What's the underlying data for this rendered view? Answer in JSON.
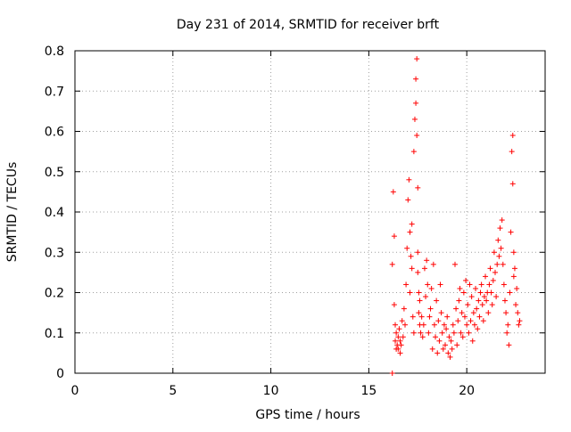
{
  "chart_data": {
    "type": "scatter",
    "title": "Day 231 of 2014, SRMTID for receiver brft",
    "xlabel": "GPS time / hours",
    "ylabel": "SRMTID / TECUs",
    "xlim": [
      0,
      24
    ],
    "ylim": [
      0,
      0.8
    ],
    "xticks": [
      0,
      5,
      10,
      15,
      20
    ],
    "xtick_labels": [
      "0",
      "5",
      "10",
      "15",
      "20"
    ],
    "yticks": [
      0,
      0.1,
      0.2,
      0.3,
      0.4,
      0.5,
      0.6,
      0.7,
      0.8
    ],
    "ytick_labels": [
      "0",
      "0.1",
      "0.2",
      "0.3",
      "0.4",
      "0.5",
      "0.6",
      "0.7",
      "0.8"
    ],
    "grid": true,
    "marker": "+",
    "series": [
      {
        "name": "SRMTID",
        "color": "#ff0000",
        "x": [
          16.2,
          16.2,
          16.25,
          16.3,
          16.3,
          16.35,
          16.35,
          16.4,
          16.4,
          16.45,
          16.5,
          16.5,
          16.55,
          16.6,
          16.6,
          16.65,
          16.7,
          16.75,
          16.8,
          16.85,
          16.9,
          16.95,
          17.0,
          17.05,
          17.1,
          17.1,
          17.15,
          17.2,
          17.2,
          17.25,
          17.3,
          17.3,
          17.35,
          17.4,
          17.4,
          17.45,
          17.45,
          17.5,
          17.5,
          17.5,
          17.55,
          17.55,
          17.6,
          17.6,
          17.65,
          17.7,
          17.75,
          17.8,
          17.85,
          17.9,
          17.95,
          18.0,
          18.05,
          18.1,
          18.15,
          18.2,
          18.25,
          18.3,
          18.35,
          18.4,
          18.45,
          18.5,
          18.55,
          18.6,
          18.65,
          18.7,
          18.75,
          18.8,
          18.85,
          18.9,
          18.95,
          19.0,
          19.05,
          19.1,
          19.15,
          19.2,
          19.25,
          19.3,
          19.35,
          19.4,
          19.45,
          19.5,
          19.55,
          19.6,
          19.65,
          19.7,
          19.75,
          19.8,
          19.85,
          19.9,
          19.95,
          20.0,
          20.05,
          20.1,
          20.15,
          20.2,
          20.25,
          20.3,
          20.35,
          20.4,
          20.45,
          20.5,
          20.55,
          20.6,
          20.65,
          20.7,
          20.75,
          20.8,
          20.85,
          20.9,
          20.95,
          21.0,
          21.05,
          21.1,
          21.15,
          21.2,
          21.25,
          21.3,
          21.35,
          21.4,
          21.45,
          21.5,
          21.55,
          21.6,
          21.65,
          21.7,
          21.75,
          21.8,
          21.85,
          21.9,
          21.95,
          22.0,
          22.05,
          22.1,
          22.15,
          22.2,
          22.25,
          22.3,
          22.35,
          22.35,
          22.4,
          22.4,
          22.45,
          22.5,
          22.55,
          22.6,
          22.65,
          22.7
        ],
        "y": [
          0.0,
          0.27,
          0.45,
          0.34,
          0.17,
          0.12,
          0.08,
          0.06,
          0.1,
          0.07,
          0.09,
          0.06,
          0.11,
          0.08,
          0.05,
          0.07,
          0.13,
          0.09,
          0.16,
          0.12,
          0.22,
          0.31,
          0.43,
          0.48,
          0.35,
          0.2,
          0.29,
          0.26,
          0.37,
          0.14,
          0.1,
          0.55,
          0.63,
          0.67,
          0.73,
          0.78,
          0.59,
          0.46,
          0.3,
          0.25,
          0.2,
          0.15,
          0.12,
          0.18,
          0.1,
          0.14,
          0.09,
          0.12,
          0.26,
          0.19,
          0.28,
          0.22,
          0.1,
          0.14,
          0.16,
          0.21,
          0.06,
          0.27,
          0.12,
          0.09,
          0.18,
          0.05,
          0.13,
          0.08,
          0.22,
          0.15,
          0.1,
          0.06,
          0.12,
          0.07,
          0.11,
          0.14,
          0.05,
          0.09,
          0.04,
          0.08,
          0.06,
          0.12,
          0.1,
          0.27,
          0.16,
          0.07,
          0.13,
          0.18,
          0.21,
          0.1,
          0.15,
          0.09,
          0.2,
          0.14,
          0.23,
          0.12,
          0.17,
          0.1,
          0.22,
          0.13,
          0.19,
          0.08,
          0.15,
          0.12,
          0.21,
          0.16,
          0.11,
          0.18,
          0.14,
          0.2,
          0.22,
          0.17,
          0.13,
          0.19,
          0.24,
          0.18,
          0.2,
          0.15,
          0.22,
          0.26,
          0.2,
          0.17,
          0.23,
          0.3,
          0.25,
          0.19,
          0.27,
          0.33,
          0.29,
          0.36,
          0.31,
          0.38,
          0.27,
          0.22,
          0.18,
          0.15,
          0.1,
          0.12,
          0.07,
          0.2,
          0.35,
          0.55,
          0.59,
          0.47,
          0.3,
          0.24,
          0.26,
          0.17,
          0.21,
          0.15,
          0.12,
          0.13
        ]
      }
    ]
  }
}
